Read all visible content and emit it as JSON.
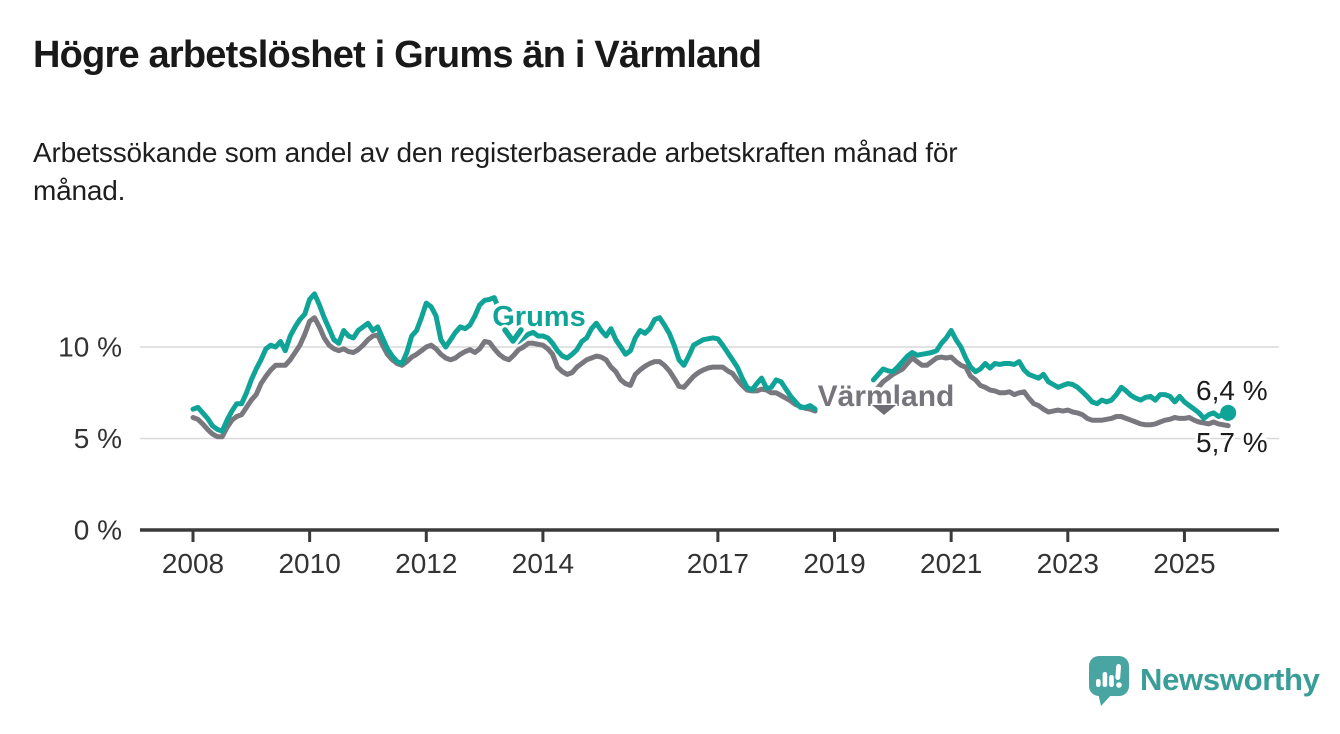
{
  "page": {
    "title": "Högre arbetslöshet i Grums än i Värmland",
    "subtitle": "Arbetssökande som andel av den registerbaserade arbetskraften månad för\nmånad."
  },
  "branding": {
    "name": "Newsworthy",
    "icon": "bar-chart-speech-bubble-icon",
    "accent_color": "#399d98"
  },
  "chart_data": {
    "type": "line",
    "title": "Högre arbetslöshet i Grums än i Värmland",
    "subtitle": "Arbetssökande som andel av den registerbaserade arbetskraften månad för månad.",
    "unit": "%",
    "frequency": "monthly",
    "x_start": "2008-01",
    "x_end": "2025-10",
    "data_gap": {
      "from": "2018-10",
      "to": "2019-08"
    },
    "x_tick_years": [
      2008,
      2010,
      2012,
      2014,
      2017,
      2019,
      2021,
      2023,
      2025
    ],
    "y_ticks": [
      {
        "value": 0,
        "label": "0 %"
      },
      {
        "value": 5,
        "label": "5 %"
      },
      {
        "value": 10,
        "label": "10 %"
      }
    ],
    "ylim": [
      0,
      13.5
    ],
    "grid": "horizontal",
    "colors": {
      "grums": "#10a397",
      "varmland": "#7a787f",
      "axis": "#3a3a3a",
      "gridline": "#d9d9d9",
      "label_text": "#1c1c1c"
    },
    "series": [
      {
        "name": "Grums",
        "color": "#10a397",
        "end_label": "6,4 %",
        "end_value": 6.4,
        "values": [
          6.6,
          6.7,
          6.4,
          6.1,
          5.7,
          5.5,
          5.4,
          6.0,
          6.5,
          6.9,
          6.9,
          7.5,
          8.2,
          8.8,
          9.3,
          9.9,
          10.1,
          10.0,
          10.3,
          9.8,
          10.6,
          11.1,
          11.5,
          11.8,
          12.6,
          12.9,
          12.3,
          11.6,
          11.0,
          10.4,
          10.2,
          10.9,
          10.6,
          10.5,
          10.9,
          11.1,
          11.3,
          10.9,
          11.1,
          10.5,
          9.9,
          9.5,
          9.2,
          9.1,
          9.7,
          10.6,
          10.9,
          11.6,
          12.4,
          12.2,
          11.7,
          10.4,
          10.0,
          10.4,
          10.8,
          11.1,
          11.0,
          11.2,
          11.7,
          12.3,
          12.55,
          12.6,
          12.7,
          12.0,
          11.2,
          10.5,
          10.2,
          10.3,
          10.5,
          10.7,
          10.8,
          10.6,
          10.6,
          10.5,
          10.2,
          9.8,
          9.5,
          9.4,
          9.6,
          9.85,
          10.3,
          10.5,
          11.0,
          11.3,
          10.9,
          10.6,
          11.0,
          10.4,
          10.0,
          9.6,
          9.8,
          10.5,
          10.9,
          10.75,
          11.0,
          11.5,
          11.6,
          11.2,
          10.75,
          10.1,
          9.3,
          9.0,
          9.5,
          10.1,
          10.25,
          10.4,
          10.45,
          10.5,
          10.45,
          10.1,
          9.7,
          9.3,
          8.9,
          8.3,
          7.8,
          7.65,
          8.0,
          8.3,
          7.75,
          7.8,
          8.2,
          8.1,
          7.7,
          7.3,
          7.0,
          6.7,
          6.7,
          6.8,
          6.6,
          null,
          null,
          null,
          null,
          null,
          null,
          null,
          null,
          null,
          null,
          null,
          8.2,
          8.5,
          8.8,
          8.7,
          8.65,
          8.9,
          9.2,
          9.5,
          9.7,
          9.55,
          9.6,
          9.65,
          9.7,
          9.8,
          10.2,
          10.5,
          10.9,
          10.4,
          10.0,
          9.4,
          8.9,
          8.65,
          8.8,
          9.1,
          8.85,
          9.1,
          9.05,
          9.1,
          9.1,
          9.05,
          9.2,
          8.75,
          8.5,
          8.4,
          8.3,
          8.5,
          8.1,
          7.95,
          7.8,
          7.9,
          8.0,
          7.95,
          7.8,
          7.55,
          7.3,
          7.0,
          6.9,
          7.1,
          7.0,
          7.1,
          7.4,
          7.8,
          7.6,
          7.35,
          7.2,
          7.1,
          7.25,
          7.3,
          7.1,
          7.4,
          7.4,
          7.3,
          7.0,
          7.3,
          7.0,
          6.8,
          6.6,
          6.4,
          6.1,
          6.3,
          6.4,
          6.2,
          6.3,
          6.4
        ]
      },
      {
        "name": "Värmland",
        "color": "#7a787f",
        "end_label": "5,7 %",
        "end_value": 5.7,
        "values": [
          6.15,
          6.05,
          5.8,
          5.5,
          5.25,
          5.1,
          5.1,
          5.6,
          6.0,
          6.2,
          6.3,
          6.7,
          7.1,
          7.4,
          8.0,
          8.4,
          8.75,
          9.0,
          9.0,
          9.0,
          9.3,
          9.7,
          10.1,
          10.7,
          11.4,
          11.6,
          11.1,
          10.5,
          10.1,
          9.9,
          9.8,
          9.9,
          9.75,
          9.7,
          9.85,
          10.1,
          10.4,
          10.6,
          10.65,
          10.1,
          9.6,
          9.3,
          9.1,
          9.0,
          9.2,
          9.45,
          9.6,
          9.8,
          10.0,
          10.1,
          9.9,
          9.6,
          9.4,
          9.3,
          9.4,
          9.6,
          9.75,
          9.85,
          9.7,
          9.9,
          10.3,
          10.25,
          9.9,
          9.6,
          9.4,
          9.3,
          9.55,
          9.85,
          10.0,
          10.2,
          10.2,
          10.15,
          10.1,
          9.9,
          9.6,
          8.9,
          8.65,
          8.5,
          8.6,
          8.9,
          9.1,
          9.3,
          9.4,
          9.5,
          9.45,
          9.3,
          8.9,
          8.65,
          8.2,
          8.0,
          7.9,
          8.5,
          8.75,
          8.95,
          9.1,
          9.2,
          9.2,
          9.0,
          8.7,
          8.3,
          7.85,
          7.8,
          8.1,
          8.4,
          8.6,
          8.75,
          8.85,
          8.9,
          8.9,
          8.9,
          8.7,
          8.55,
          8.2,
          7.9,
          7.65,
          7.6,
          7.6,
          7.7,
          7.65,
          7.5,
          7.5,
          7.35,
          7.2,
          7.05,
          6.85,
          6.75,
          6.65,
          6.6,
          6.5,
          null,
          null,
          null,
          null,
          null,
          null,
          null,
          null,
          null,
          null,
          null,
          7.5,
          7.8,
          8.1,
          8.3,
          8.5,
          8.65,
          8.8,
          9.1,
          9.4,
          9.2,
          9.0,
          9.0,
          9.2,
          9.4,
          9.45,
          9.4,
          9.45,
          9.2,
          9.0,
          8.9,
          8.4,
          8.2,
          7.9,
          7.8,
          7.65,
          7.6,
          7.5,
          7.5,
          7.55,
          7.4,
          7.5,
          7.55,
          7.2,
          6.9,
          6.8,
          6.6,
          6.45,
          6.5,
          6.55,
          6.5,
          6.55,
          6.45,
          6.4,
          6.3,
          6.1,
          6.0,
          6.0,
          6.0,
          6.05,
          6.1,
          6.2,
          6.2,
          6.1,
          6.0,
          5.9,
          5.8,
          5.75,
          5.75,
          5.8,
          5.9,
          6.0,
          6.05,
          6.15,
          6.1,
          6.1,
          6.15,
          6.0,
          5.9,
          5.85,
          5.8,
          5.9,
          5.8,
          5.75,
          5.7
        ]
      }
    ]
  }
}
